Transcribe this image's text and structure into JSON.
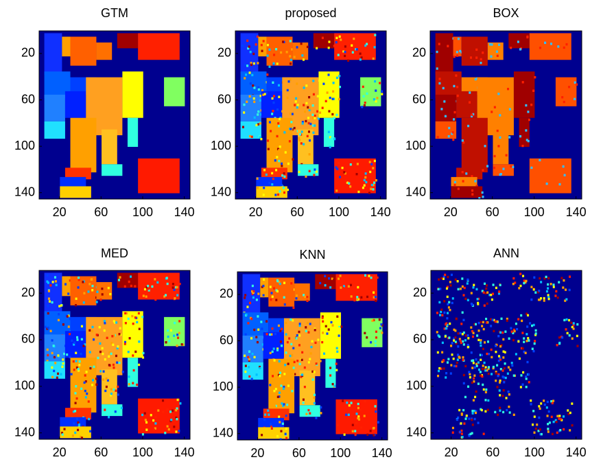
{
  "chart_data": [
    {
      "type": "image",
      "title": "GTM",
      "xlim": [
        0.5,
        145.5
      ],
      "ylim": [
        0.5,
        145.5
      ],
      "xticks": [
        20,
        60,
        100,
        140
      ],
      "yticks": [
        20,
        60,
        100,
        140
      ],
      "y_inverted": true
    },
    {
      "type": "image",
      "title": "proposed",
      "xlim": [
        0.5,
        145.5
      ],
      "ylim": [
        0.5,
        145.5
      ],
      "xticks": [
        20,
        60,
        100,
        140
      ],
      "yticks": [
        20,
        60,
        100,
        140
      ],
      "y_inverted": true
    },
    {
      "type": "image",
      "title": "BOX",
      "xlim": [
        0.5,
        145.5
      ],
      "ylim": [
        0.5,
        145.5
      ],
      "xticks": [
        20,
        60,
        100,
        140
      ],
      "yticks": [
        20,
        60,
        100,
        140
      ],
      "y_inverted": true
    },
    {
      "type": "image",
      "title": "MED",
      "xlim": [
        0.5,
        145.5
      ],
      "ylim": [
        0.5,
        145.5
      ],
      "xticks": [
        20,
        60,
        100,
        140
      ],
      "yticks": [
        20,
        60,
        100,
        140
      ],
      "y_inverted": true
    },
    {
      "type": "image",
      "title": "KNN",
      "xlim": [
        0.5,
        145.5
      ],
      "ylim": [
        0.5,
        145.5
      ],
      "xticks": [
        20,
        60,
        100,
        140
      ],
      "yticks": [
        20,
        60,
        100,
        140
      ],
      "y_inverted": true
    },
    {
      "type": "image",
      "title": "ANN",
      "xlim": [
        0.5,
        145.5
      ],
      "ylim": [
        0.5,
        145.5
      ],
      "xticks": [
        20,
        60,
        100,
        140
      ],
      "yticks": [
        20,
        60,
        100,
        140
      ],
      "y_inverted": true
    }
  ]
}
